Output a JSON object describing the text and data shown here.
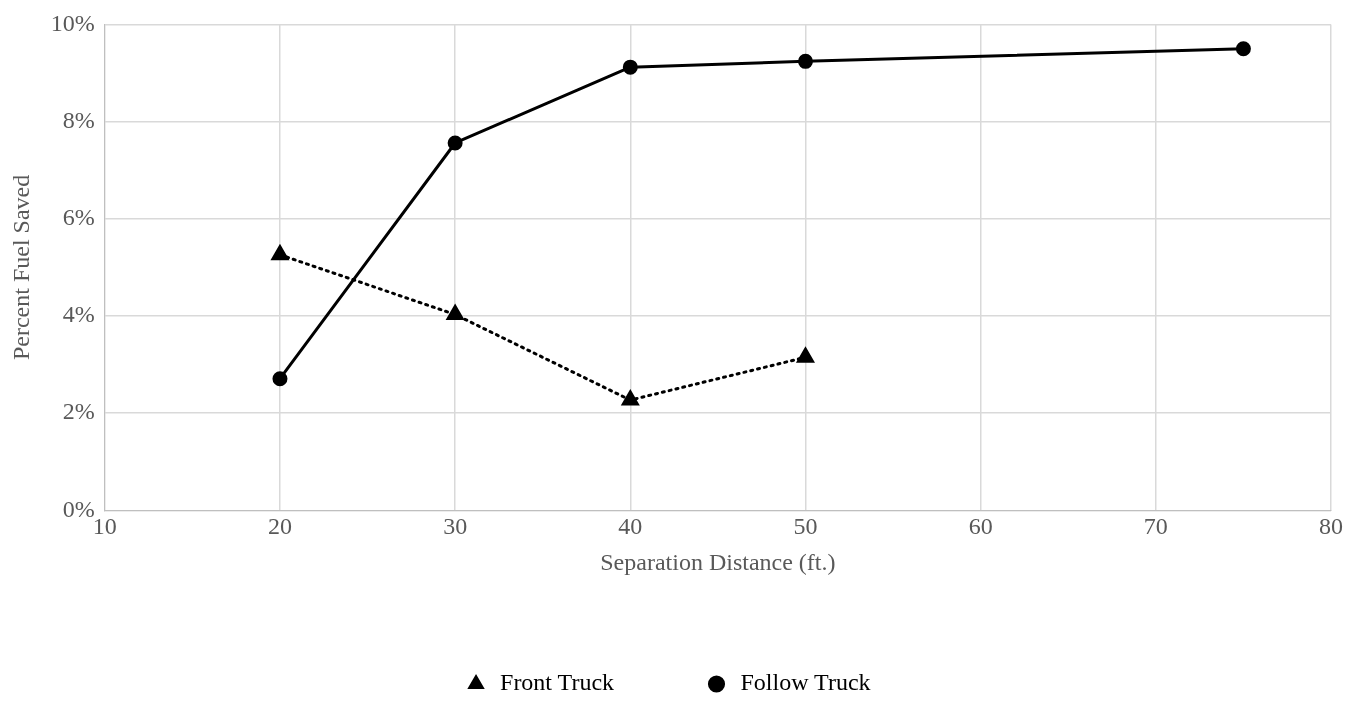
{
  "chart_data": {
    "type": "line",
    "xlabel": "Separation Distance (ft.)",
    "ylabel": "Percent Fuel Saved",
    "xlim": [
      10,
      80
    ],
    "xticks": [
      10,
      20,
      30,
      40,
      50,
      60,
      70,
      80
    ],
    "ylim": [
      0,
      10
    ],
    "yticks": [
      {
        "value": 0,
        "label": "0%"
      },
      {
        "value": 2,
        "label": "2%"
      },
      {
        "value": 4,
        "label": "4%"
      },
      {
        "value": 6,
        "label": "6%"
      },
      {
        "value": 8,
        "label": "8%"
      },
      {
        "value": 10,
        "label": "10%"
      }
    ],
    "grid": true,
    "legend": "bottom",
    "series": [
      {
        "name": "Front Truck",
        "color": "#000000",
        "x": [
          20,
          30,
          40,
          50
        ],
        "values": [
          5.26,
          4.03,
          2.27,
          3.15
        ],
        "marker": "triangle",
        "line_style": "dotted"
      },
      {
        "name": "Follow Truck",
        "color": "#000000",
        "x": [
          20,
          30,
          40,
          50,
          75
        ],
        "values": [
          2.71,
          7.56,
          9.12,
          9.24,
          9.5
        ],
        "marker": "circle",
        "line_style": "solid"
      }
    ]
  }
}
